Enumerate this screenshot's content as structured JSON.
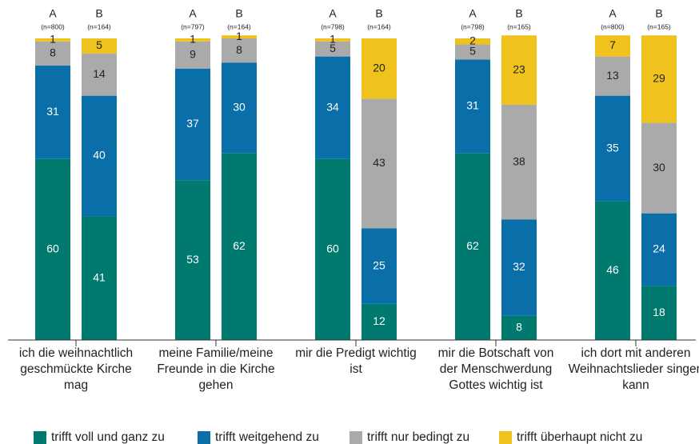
{
  "chart_data": {
    "type": "stacked_bar",
    "categories": [
      "ich die weihnachtlich geschmückte Kirche mag",
      "meine Familie/meine Freunde in die Kirche gehen",
      "mir die Predigt wichtig ist",
      "mir die Botschaft von der Menschwerdung Gottes wichtig ist",
      "ich dort mit anderen Weihnachtslieder singen kann"
    ],
    "subgroups": [
      "A",
      "B"
    ],
    "n_labels": [
      [
        "(n=800)",
        "(n=164)"
      ],
      [
        "(n=797)",
        "(n=164)"
      ],
      [
        "(n=798)",
        "(n=164)"
      ],
      [
        "(n=798)",
        "(n=165)"
      ],
      [
        "(n=800)",
        "(n=165)"
      ]
    ],
    "ylim": [
      0,
      100
    ],
    "series": [
      {
        "name": "trifft voll und ganz zu",
        "color": "#007a6e",
        "label_color": "#ffffff",
        "values": [
          [
            60,
            41
          ],
          [
            53,
            62
          ],
          [
            60,
            12
          ],
          [
            62,
            8
          ],
          [
            46,
            18
          ]
        ]
      },
      {
        "name": "trifft weitgehend zu",
        "color": "#0a6ea8",
        "label_color": "#ffffff",
        "values": [
          [
            31,
            40
          ],
          [
            37,
            30
          ],
          [
            34,
            25
          ],
          [
            31,
            32
          ],
          [
            35,
            24
          ]
        ]
      },
      {
        "name": "trifft nur bedingt zu",
        "color": "#aaaaaa",
        "label_color": "#222222",
        "values": [
          [
            8,
            14
          ],
          [
            9,
            8
          ],
          [
            5,
            43
          ],
          [
            5,
            38
          ],
          [
            13,
            30
          ]
        ]
      },
      {
        "name": "trifft überhaupt nicht zu",
        "color": "#f0c21e",
        "label_color": "#222222",
        "values": [
          [
            1,
            5
          ],
          [
            1,
            1
          ],
          [
            1,
            20
          ],
          [
            2,
            23
          ],
          [
            7,
            29
          ]
        ]
      }
    ]
  }
}
